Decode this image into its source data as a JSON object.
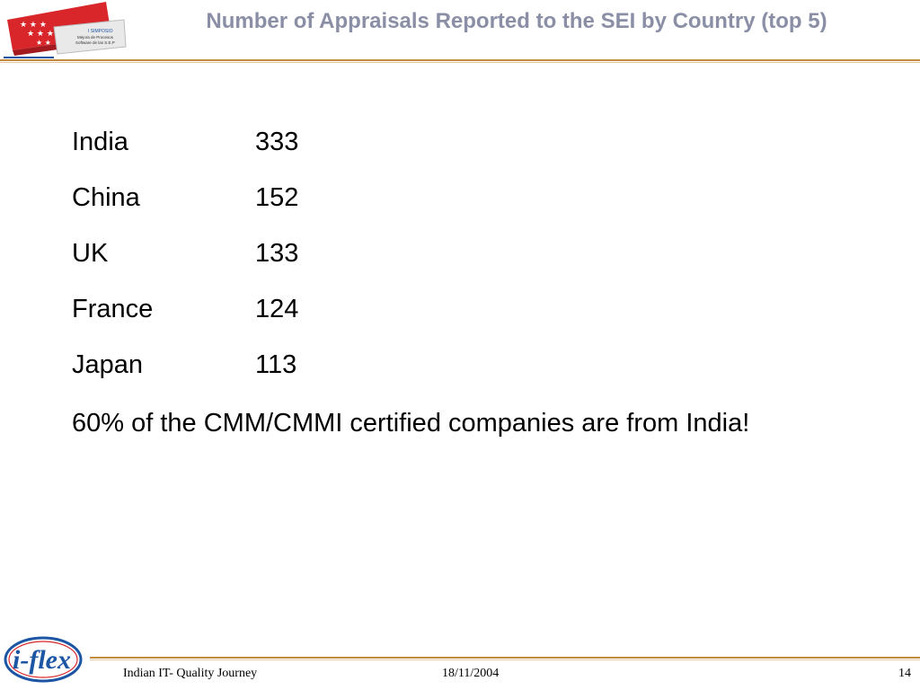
{
  "header": {
    "title": "Number of Appraisals Reported to the SEI by Country (top 5)",
    "logo_text_lines": [
      "I SIMPOSIO",
      "Mejora de Procesos",
      "Software de las S.E.P"
    ]
  },
  "appraisals": [
    {
      "country": "India",
      "count": "333"
    },
    {
      "country": "China",
      "count": "152"
    },
    {
      "country": "UK",
      "count": "133"
    },
    {
      "country": "France",
      "count": "124"
    },
    {
      "country": "Japan",
      "count": "113"
    }
  ],
  "note": "60% of the CMM/CMMI certified companies are from India!",
  "footer": {
    "logo_text": "i-flex",
    "presentation": "Indian IT- Quality Journey",
    "date": "18/11/2004",
    "page": "14"
  },
  "colors": {
    "title": "#8a8fa6",
    "rule": "#c28a3f",
    "logo_red": "#d8262b",
    "logo_blue": "#1b55a3"
  }
}
